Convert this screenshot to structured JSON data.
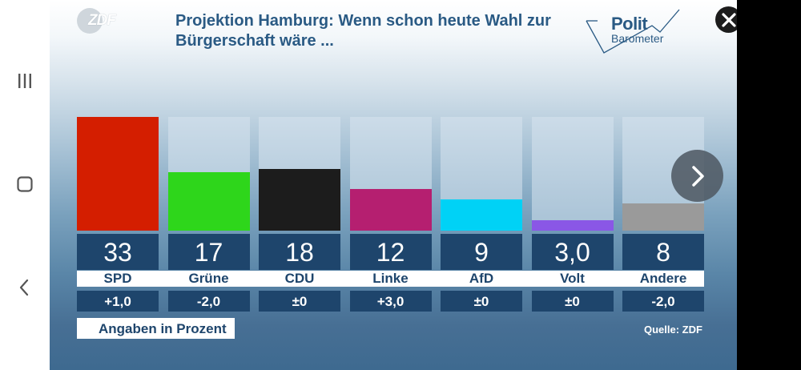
{
  "header": {
    "title_line1": "Projektion Hamburg: Wenn schon heute Wahl zur",
    "title_line2": "Bürgerschaft wäre ...",
    "zdf_logo_text": "ZDF",
    "polit_text": "Polit",
    "barometer_text": "Barometer"
  },
  "icons": {
    "nav_recent": "recent-apps-icon",
    "nav_home": "home-icon",
    "nav_back": "back-icon",
    "close": "close-icon",
    "next": "chevron-right-icon"
  },
  "colors": {
    "panel_dark": "#1e456c",
    "title": "#2a5a84"
  },
  "chart_data": {
    "type": "bar",
    "title": "Projektion Hamburg: Wenn schon heute Wahl zur Bürgerschaft wäre ...",
    "categories": [
      "SPD",
      "Grüne",
      "CDU",
      "Linke",
      "AfD",
      "Volt",
      "Andere"
    ],
    "values": [
      33,
      17,
      18,
      12,
      9,
      3.0,
      8
    ],
    "value_labels": [
      "33",
      "17",
      "18",
      "12",
      "9",
      "3,0",
      "8"
    ],
    "changes": [
      "+1,0",
      "-2,0",
      "±0",
      "+3,0",
      "±0",
      "±0",
      "-2,0"
    ],
    "colors": [
      "#d41e00",
      "#2ed61b",
      "#1c1c1c",
      "#b51f70",
      "#00d2f6",
      "#8a57e6",
      "#9a9a9a"
    ],
    "ylim": [
      0,
      33
    ],
    "unit_note": "Angaben in Prozent",
    "source": "Quelle: ZDF",
    "grid": false,
    "legend": "none"
  }
}
